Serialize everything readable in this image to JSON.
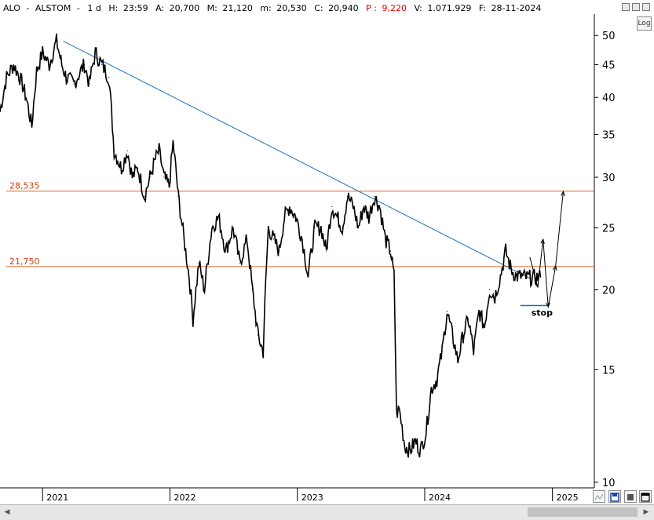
{
  "header": {
    "symbol": "ALO",
    "sep": "-",
    "name": "ALSTOM",
    "sep2": "-",
    "interval": "1 d",
    "high_label": "H:",
    "time": "23:59",
    "open_label": "A:",
    "open": "20,700",
    "max_label": "M:",
    "max": "21,120",
    "min_label": "m:",
    "min": "20,530",
    "close_label": "C:",
    "close": "20,940",
    "p_label": "P :",
    "p_value": "9,220",
    "volume_label": "V:",
    "volume": "1.071.929",
    "date_label": "F:",
    "date": "28-11-2024"
  },
  "toolbar": {
    "log_label": "Log"
  },
  "colors": {
    "price": "#000000",
    "trendline": "#1f6fb8",
    "level": "#e0672a",
    "level_text": "#d04010",
    "stop_line": "#1f6fb8",
    "grid": "#000000"
  },
  "chart_data": {
    "type": "line",
    "scale": "log",
    "xlim": [
      "2020-09-01",
      "2025-05-01"
    ],
    "ylim": [
      9.8,
      54
    ],
    "x_ticks": [
      "2021",
      "2022",
      "2023",
      "2024",
      "2025"
    ],
    "y_ticks": [
      10,
      15,
      20,
      25,
      30,
      35,
      40,
      45,
      50
    ],
    "series": [
      {
        "type": "price",
        "x": [
          "2020-09-01",
          "2020-09-20",
          "2020-10-10",
          "2020-10-28",
          "2020-11-15",
          "2020-12-01",
          "2020-12-15",
          "2021-01-01",
          "2021-01-20",
          "2021-02-10",
          "2021-02-25",
          "2021-03-10",
          "2021-04-01",
          "2021-04-20",
          "2021-05-01",
          "2021-05-15",
          "2021-06-01",
          "2021-06-20",
          "2021-07-10",
          "2021-07-25",
          "2021-08-15",
          "2021-09-01",
          "2021-09-15",
          "2021-10-01",
          "2021-10-20",
          "2021-11-05",
          "2021-11-20",
          "2021-12-01",
          "2021-12-15",
          "2021-12-30",
          "2022-01-10",
          "2022-01-25",
          "2022-02-10",
          "2022-02-25",
          "2022-03-08",
          "2022-03-25",
          "2022-04-10",
          "2022-05-01",
          "2022-05-20",
          "2022-06-10",
          "2022-07-01",
          "2022-07-20",
          "2022-08-10",
          "2022-08-25",
          "2022-09-10",
          "2022-09-25",
          "2022-10-10",
          "2022-10-25",
          "2022-11-10",
          "2022-11-25",
          "2022-12-10",
          "2022-12-28",
          "2023-01-15",
          "2023-02-01",
          "2023-02-20",
          "2023-03-10",
          "2023-03-25",
          "2023-04-10",
          "2023-04-25",
          "2023-05-10",
          "2023-05-25",
          "2023-06-10",
          "2023-06-25",
          "2023-07-10",
          "2023-07-25",
          "2023-08-10",
          "2023-08-25",
          "2023-09-10",
          "2023-09-25",
          "2023-10-05",
          "2023-10-12",
          "2023-10-20",
          "2023-11-05",
          "2023-11-20",
          "2023-12-05",
          "2023-12-20",
          "2024-01-05",
          "2024-01-20",
          "2024-02-05",
          "2024-02-20",
          "2024-03-05",
          "2024-03-20",
          "2024-04-05",
          "2024-04-20",
          "2024-05-05",
          "2024-05-20",
          "2024-06-05",
          "2024-06-20",
          "2024-07-05",
          "2024-07-20",
          "2024-08-05",
          "2024-08-20",
          "2024-09-05",
          "2024-09-20",
          "2024-10-05",
          "2024-10-20",
          "2024-10-28",
          "2024-11-05",
          "2024-11-15",
          "2024-11-28"
        ],
        "y": [
          38,
          43,
          45,
          43,
          40,
          36,
          44,
          47,
          45,
          49,
          45,
          43,
          42,
          44,
          45,
          42,
          47,
          45,
          43,
          33,
          31,
          33,
          30,
          31,
          28,
          30,
          32,
          33,
          30,
          29,
          34,
          28,
          24,
          21,
          18,
          22,
          20,
          25,
          26,
          23,
          25,
          22,
          24,
          20,
          17,
          16,
          25,
          24,
          23,
          26,
          27,
          26,
          24,
          21,
          25,
          25,
          23,
          27,
          26,
          25,
          28,
          27,
          25,
          27,
          26,
          28,
          27,
          24,
          23,
          21,
          12.8,
          13,
          11.4,
          11.2,
          11.6,
          11.2,
          12,
          14,
          14.5,
          16,
          18.5,
          17,
          15.5,
          17,
          18,
          16,
          18.5,
          17.5,
          20,
          19.5,
          21,
          23,
          21.5,
          21,
          21,
          20.9,
          20.9,
          20.9,
          20.9,
          20.94
        ]
      },
      {
        "type": "trendline",
        "x": [
          "2021-03-01",
          "2024-11-01"
        ],
        "y": [
          49,
          20.8
        ]
      },
      {
        "type": "level",
        "label": "28,535",
        "value": 28.535
      },
      {
        "type": "level",
        "label": "21,750",
        "value": 21.75
      },
      {
        "type": "stop",
        "label": "stop",
        "x": [
          "2024-10-01",
          "2024-12-20"
        ],
        "y": [
          18.9,
          18.9
        ]
      },
      {
        "type": "projection",
        "x": [
          "2024-10-28",
          "2024-11-20",
          "2024-12-05",
          "2024-12-20",
          "2025-01-10",
          "2025-02-01"
        ],
        "y": [
          22.5,
          20.2,
          24.0,
          18.8,
          21.8,
          28.5
        ]
      }
    ]
  }
}
